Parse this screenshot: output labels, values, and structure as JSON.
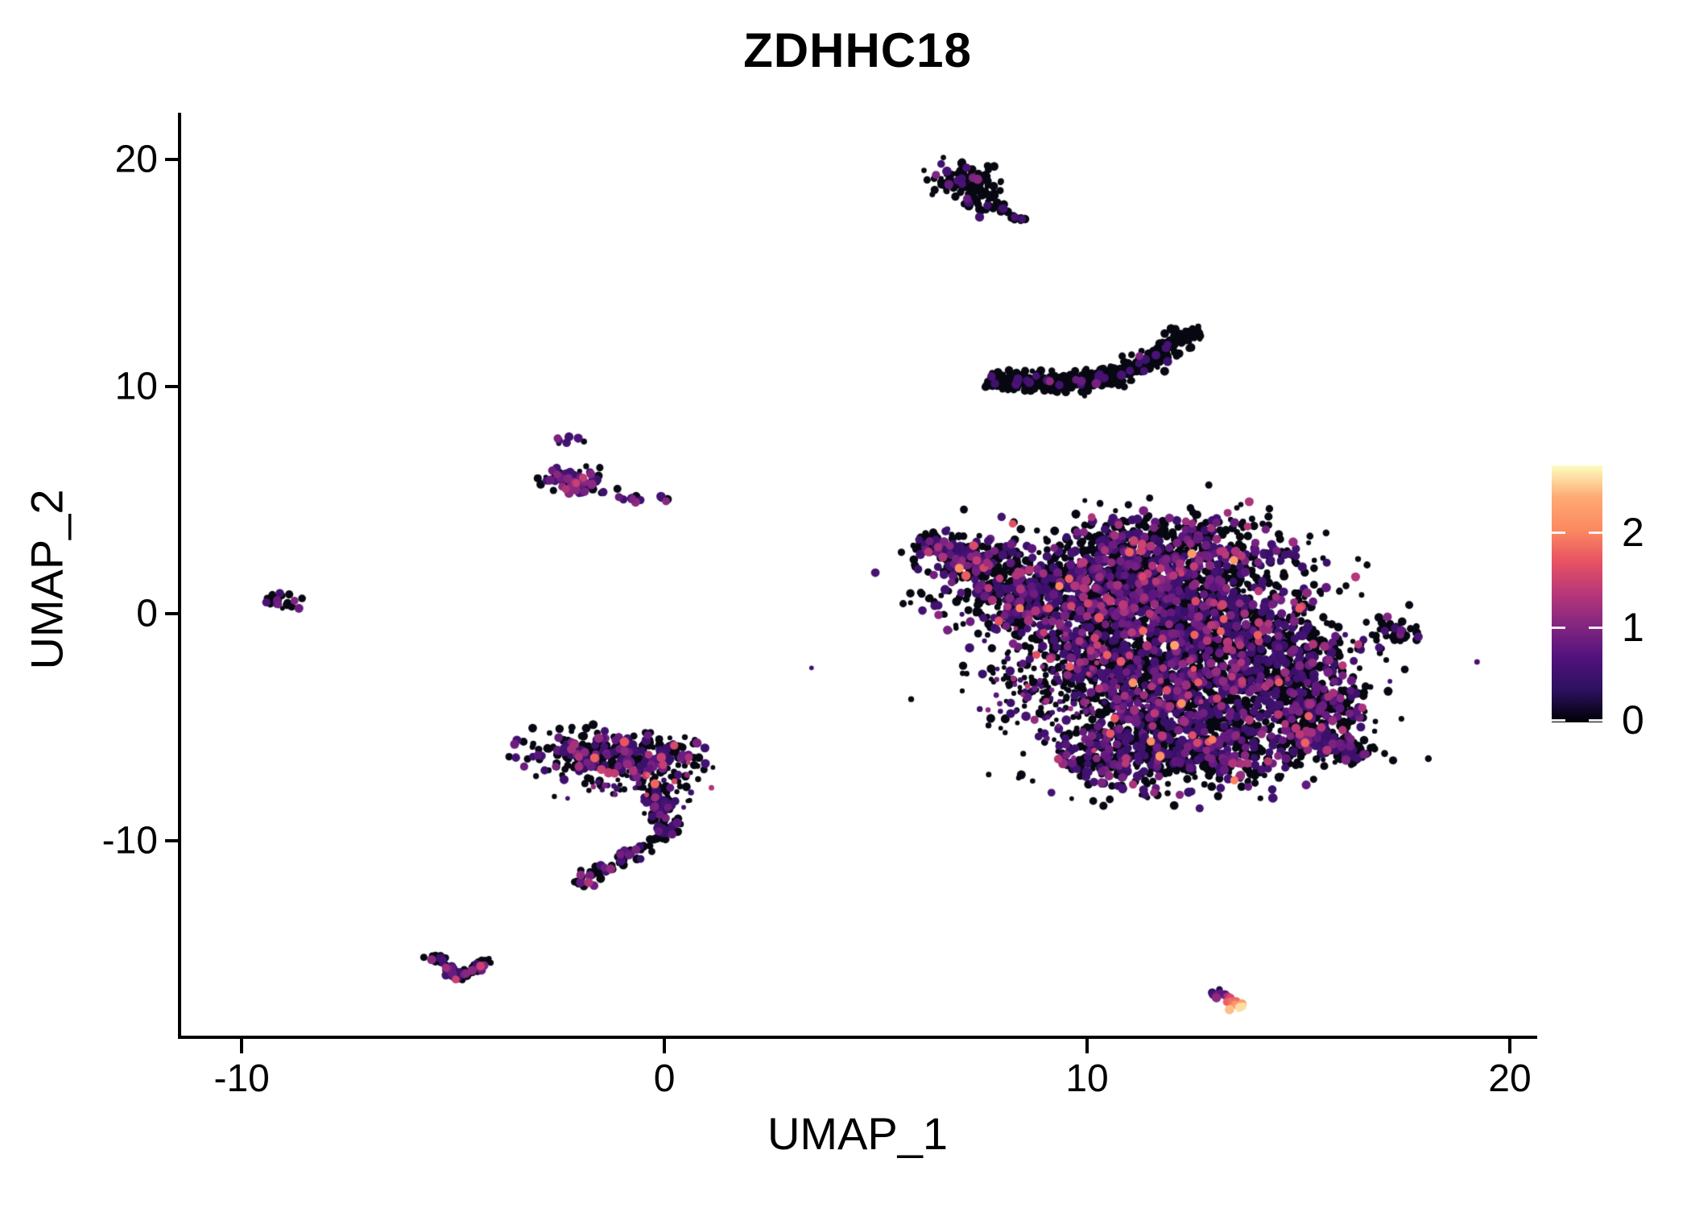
{
  "title": "ZDHHC18",
  "x_axis": {
    "label": "UMAP_1",
    "ticks": [
      -10,
      0,
      10,
      20
    ]
  },
  "y_axis": {
    "label": "UMAP_2",
    "ticks": [
      20,
      10,
      0,
      -10
    ]
  },
  "colorbar": {
    "tick_labels": [
      2,
      1,
      0
    ],
    "min": 0,
    "max": 2.7,
    "palette": "magma",
    "stops": [
      [
        0.0,
        "#000004"
      ],
      [
        0.125,
        "#2C115F"
      ],
      [
        0.25,
        "#51127C"
      ],
      [
        0.375,
        "#822681"
      ],
      [
        0.5,
        "#B73779"
      ],
      [
        0.625,
        "#E75263"
      ],
      [
        0.75,
        "#FC8961"
      ],
      [
        0.875,
        "#FEA973"
      ],
      [
        1.0,
        "#FCFDBF"
      ]
    ]
  },
  "chart_data": {
    "type": "scatter",
    "title": "ZDHHC18",
    "subtitle": "",
    "xlabel": "UMAP_1",
    "ylabel": "UMAP_2",
    "xlim": [
      -11.47,
      20.61
    ],
    "ylim": [
      -18.58,
      21.99
    ],
    "x_ticks": [
      -10,
      0,
      10,
      20
    ],
    "y_ticks": [
      -10,
      0,
      10,
      20
    ],
    "grid": false,
    "legend_position": "right",
    "color_scale": {
      "name": "magma",
      "domain": [
        0,
        2.7
      ],
      "legend_ticks": [
        0,
        1,
        2
      ]
    },
    "point_radius_px": [
      3,
      6
    ],
    "clusters": [
      {
        "name": "top-small-cluster",
        "expr": [
          [
            0,
            0.87
          ],
          [
            0.55,
            0.09
          ],
          [
            0.95,
            0.04
          ]
        ],
        "components": [
          {
            "kind": "gauss",
            "cx": 7.1,
            "cy": 18.95,
            "sx": 0.42,
            "sy": 0.38,
            "rot": -30,
            "n": 105
          },
          {
            "kind": "gauss",
            "cx": 7.55,
            "cy": 18.15,
            "sx": 0.28,
            "sy": 0.22,
            "rot": -20,
            "n": 28
          },
          {
            "kind": "streak",
            "x1": 7.75,
            "y1": 17.95,
            "x2": 8.5,
            "y2": 17.35,
            "w": 0.12,
            "n": 20
          }
        ]
      },
      {
        "name": "crescent-cluster",
        "expr": [
          [
            0,
            0.93
          ],
          [
            0.55,
            0.05
          ],
          [
            0.95,
            0.02
          ]
        ],
        "components": [
          {
            "kind": "streak",
            "x1": 7.62,
            "y1": 10.28,
            "x2": 9.6,
            "y2": 10.12,
            "w": 0.4,
            "n": 165
          },
          {
            "kind": "streak",
            "x1": 9.6,
            "y1": 10.12,
            "x2": 11.1,
            "y2": 10.75,
            "w": 0.45,
            "n": 150
          },
          {
            "kind": "streak",
            "x1": 11.1,
            "y1": 10.75,
            "x2": 12.65,
            "y2": 12.65,
            "w": 0.4,
            "n": 125
          }
        ]
      },
      {
        "name": "main-blob",
        "expr": [
          [
            0,
            0.645
          ],
          [
            0.5,
            0.2
          ],
          [
            0.85,
            0.1
          ],
          [
            1.2,
            0.04
          ],
          [
            1.55,
            0.012
          ],
          [
            2.0,
            0.003
          ]
        ],
        "components": [
          {
            "kind": "streak",
            "x1": 6.05,
            "y1": 3.25,
            "x2": 7.6,
            "y2": 2.3,
            "w": 0.55,
            "n": 150
          },
          {
            "kind": "gauss",
            "cx": 7.6,
            "cy": 1.6,
            "sx": 0.75,
            "sy": 0.85,
            "rot": 0,
            "n": 200
          },
          {
            "kind": "gauss",
            "cx": 8.8,
            "cy": 0.6,
            "sx": 0.8,
            "sy": 0.9,
            "rot": 0,
            "n": 190
          },
          {
            "kind": "gauss",
            "cx": 11.9,
            "cy": 3.1,
            "sx": 1.5,
            "sy": 0.75,
            "rot": 0,
            "n": 400
          },
          {
            "kind": "gauss",
            "cx": 10.4,
            "cy": 1.7,
            "sx": 1.0,
            "sy": 0.8,
            "rot": 0,
            "n": 300
          },
          {
            "kind": "gauss",
            "cx": 10.7,
            "cy": 0.0,
            "sx": 1.2,
            "sy": 1.0,
            "rot": 0,
            "n": 420
          },
          {
            "kind": "gauss",
            "cx": 12.7,
            "cy": 1.0,
            "sx": 1.2,
            "sy": 1.05,
            "rot": 0,
            "n": 450
          },
          {
            "kind": "gauss",
            "cx": 11.4,
            "cy": -1.8,
            "sx": 1.5,
            "sy": 1.15,
            "rot": 0,
            "n": 560
          },
          {
            "kind": "gauss",
            "cx": 13.7,
            "cy": -1.3,
            "sx": 1.1,
            "sy": 1.0,
            "rot": 0,
            "n": 400
          },
          {
            "kind": "gauss",
            "cx": 9.7,
            "cy": -3.4,
            "sx": 1.0,
            "sy": 1.05,
            "rot": 0,
            "n": 260,
            "small": true
          },
          {
            "kind": "gauss",
            "cx": 12.3,
            "cy": -3.9,
            "sx": 1.4,
            "sy": 1.05,
            "rot": 0,
            "n": 480
          },
          {
            "kind": "gauss",
            "cx": 14.9,
            "cy": -2.6,
            "sx": 0.85,
            "sy": 1.1,
            "rot": 0,
            "n": 280
          },
          {
            "kind": "gauss",
            "cx": 10.9,
            "cy": -6.2,
            "sx": 0.8,
            "sy": 0.85,
            "rot": 0,
            "n": 260
          },
          {
            "kind": "gauss",
            "cx": 13.1,
            "cy": -5.9,
            "sx": 1.5,
            "sy": 0.85,
            "rot": 0,
            "n": 470
          },
          {
            "kind": "gauss",
            "cx": 15.6,
            "cy": -4.2,
            "sx": 0.65,
            "sy": 0.75,
            "rot": 0,
            "n": 150
          },
          {
            "kind": "streak",
            "x1": 15.1,
            "y1": -5.3,
            "x2": 16.5,
            "y2": -6.3,
            "w": 0.45,
            "n": 150
          },
          {
            "kind": "gauss",
            "cx": 11.5,
            "cy": -1.7,
            "sx": 2.9,
            "sy": 2.6,
            "rot": 0,
            "n": 130,
            "small": true
          }
        ]
      },
      {
        "name": "right-small-cluster",
        "expr": [
          [
            0,
            0.7
          ],
          [
            0.55,
            0.18
          ],
          [
            0.95,
            0.12
          ]
        ],
        "components": [
          {
            "kind": "gauss",
            "cx": 17.35,
            "cy": -0.85,
            "sx": 0.3,
            "sy": 0.45,
            "rot": 10,
            "n": 36
          }
        ]
      },
      {
        "name": "left-mid-cluster",
        "expr": [
          [
            0,
            0.42
          ],
          [
            0.55,
            0.3
          ],
          [
            0.95,
            0.22
          ],
          [
            1.35,
            0.06
          ]
        ],
        "components": [
          {
            "kind": "gauss",
            "cx": -2.1,
            "cy": 5.85,
            "sx": 0.42,
            "sy": 0.26,
            "rot": -18,
            "n": 85
          },
          {
            "kind": "streak",
            "x1": -1.05,
            "y1": 5.1,
            "x2": -0.55,
            "y2": 4.95,
            "w": 0.08,
            "n": 9
          },
          {
            "kind": "streak",
            "x1": -0.15,
            "y1": 5.1,
            "x2": 0.1,
            "y2": 5.0,
            "w": 0.06,
            "n": 4
          },
          {
            "kind": "gauss",
            "cx": -2.35,
            "cy": 7.65,
            "sx": 0.22,
            "sy": 0.12,
            "rot": 0,
            "n": 7
          }
        ]
      },
      {
        "name": "far-left-cluster",
        "expr": [
          [
            0,
            0.5
          ],
          [
            0.55,
            0.28
          ],
          [
            0.95,
            0.22
          ]
        ],
        "components": [
          {
            "kind": "gauss",
            "cx": -9.05,
            "cy": 0.5,
            "sx": 0.26,
            "sy": 0.2,
            "rot": -30,
            "n": 22
          }
        ]
      },
      {
        "name": "comma-cluster",
        "expr": [
          [
            0,
            0.63
          ],
          [
            0.5,
            0.21
          ],
          [
            0.85,
            0.11
          ],
          [
            1.2,
            0.035
          ],
          [
            1.6,
            0.015
          ]
        ],
        "components": [
          {
            "kind": "gauss",
            "cx": -1.7,
            "cy": -6.15,
            "sx": 0.75,
            "sy": 0.5,
            "rot": 0,
            "n": 190
          },
          {
            "kind": "gauss",
            "cx": -0.35,
            "cy": -6.35,
            "sx": 0.7,
            "sy": 0.5,
            "rot": 0,
            "n": 150
          },
          {
            "kind": "gauss",
            "cx": -0.7,
            "cy": -7.5,
            "sx": 0.8,
            "sy": 0.55,
            "rot": 0,
            "n": 80,
            "small": true
          },
          {
            "kind": "streak",
            "x1": -0.2,
            "y1": -7.5,
            "x2": 0.1,
            "y2": -9.7,
            "w": 0.3,
            "n": 85
          },
          {
            "kind": "streak",
            "x1": 0.0,
            "y1": -9.85,
            "x2": -2.1,
            "y2": -11.9,
            "w": 0.25,
            "n": 75
          }
        ]
      },
      {
        "name": "bottom-left-v-cluster",
        "expr": [
          [
            0,
            0.58
          ],
          [
            0.55,
            0.24
          ],
          [
            0.95,
            0.13
          ],
          [
            1.35,
            0.05
          ]
        ],
        "components": [
          {
            "kind": "streak",
            "x1": -5.5,
            "y1": -15.05,
            "x2": -4.85,
            "y2": -16.1,
            "w": 0.16,
            "n": 38
          },
          {
            "kind": "streak",
            "x1": -4.85,
            "y1": -16.1,
            "x2": -4.1,
            "y2": -15.15,
            "w": 0.16,
            "n": 36
          }
        ]
      },
      {
        "name": "bright-streak-cluster",
        "expr": [
          [
            0,
            1.0
          ]
        ],
        "components": [
          {
            "kind": "streak",
            "x1": 13.0,
            "y1": -16.55,
            "x2": 13.62,
            "y2": -17.35,
            "w": 0.15,
            "n": 24,
            "grad": [
              0.1,
              2.62
            ]
          }
        ]
      }
    ]
  }
}
